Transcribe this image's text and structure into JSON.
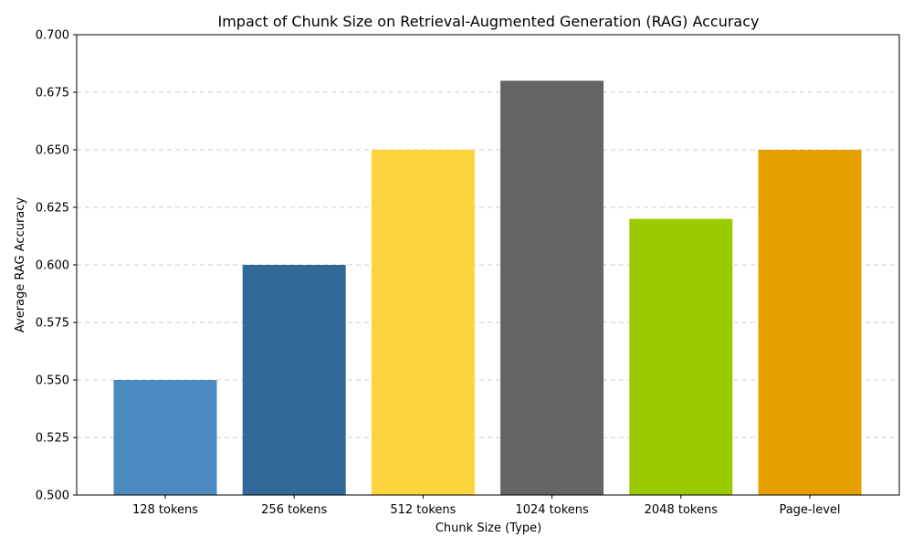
{
  "chart_data": {
    "type": "bar",
    "title": "Impact of Chunk Size on Retrieval-Augmented Generation (RAG) Accuracy",
    "xlabel": "Chunk Size (Type)",
    "ylabel": "Average RAG Accuracy",
    "categories": [
      "128 tokens",
      "256 tokens",
      "512 tokens",
      "1024 tokens",
      "2048 tokens",
      "Page-level"
    ],
    "values": [
      0.55,
      0.6,
      0.65,
      0.68,
      0.62,
      0.65
    ],
    "colors": [
      "#4a8abf",
      "#326999",
      "#fdd43c",
      "#646464",
      "#9acb00",
      "#e5a000"
    ],
    "ylim": [
      0.5,
      0.7
    ],
    "yticks": [
      "0.500",
      "0.525",
      "0.550",
      "0.575",
      "0.600",
      "0.625",
      "0.650",
      "0.675",
      "0.700"
    ],
    "grid": "horizontal-dashed",
    "legend": "none"
  }
}
